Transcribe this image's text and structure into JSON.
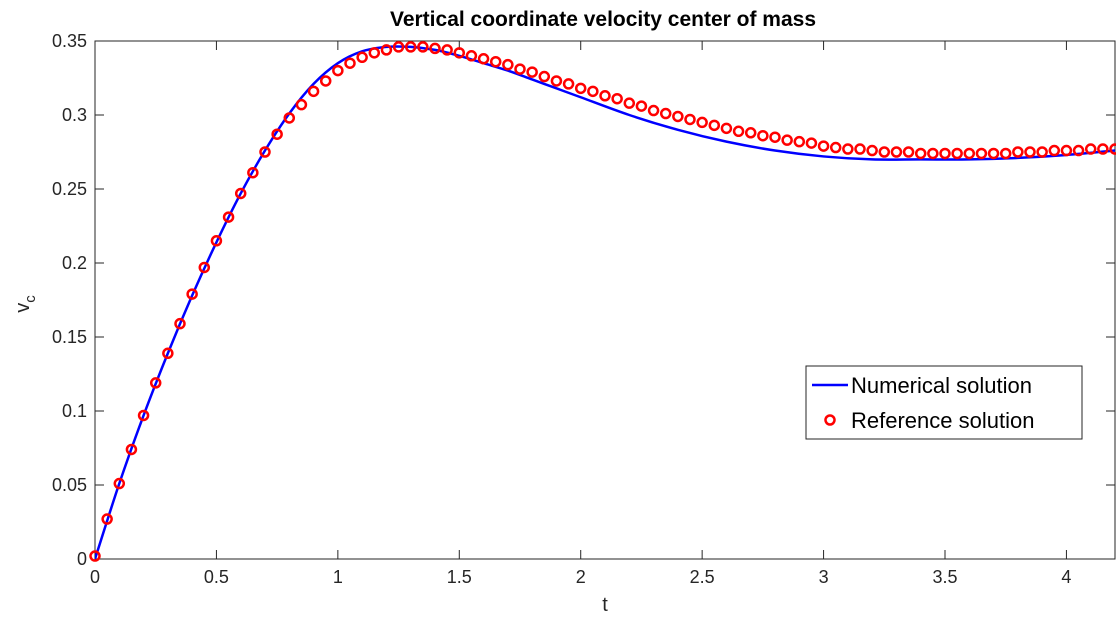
{
  "chart_data": {
    "type": "line",
    "title": "Vertical coordinate velocity center of mass",
    "xlabel": "t",
    "ylabel_main": "v",
    "ylabel_sub": "c",
    "xlim": [
      0,
      4.2
    ],
    "ylim": [
      0,
      0.35
    ],
    "xticks": [
      0,
      0.5,
      1,
      1.5,
      2,
      2.5,
      3,
      3.5,
      4
    ],
    "xtick_labels": [
      "0",
      "0.5",
      "1",
      "1.5",
      "2",
      "2.5",
      "3",
      "3.5",
      "4"
    ],
    "yticks": [
      0,
      0.05,
      0.1,
      0.15,
      0.2,
      0.25,
      0.3,
      0.35
    ],
    "ytick_labels": [
      "0",
      "0.05",
      "0.1",
      "0.15",
      "0.2",
      "0.25",
      "0.3",
      "0.35"
    ],
    "grid": false,
    "legend_position": "right-center",
    "series": [
      {
        "name": "Numerical solution",
        "style": "line",
        "color": "#0000ff",
        "x": [
          0,
          0.1,
          0.2,
          0.3,
          0.4,
          0.5,
          0.6,
          0.7,
          0.8,
          0.9,
          1.0,
          1.1,
          1.2,
          1.3,
          1.4,
          1.5,
          1.6,
          1.7,
          1.8,
          1.9,
          2.0,
          2.2,
          2.4,
          2.6,
          2.8,
          3.0,
          3.2,
          3.4,
          3.6,
          3.8,
          4.0,
          4.2
        ],
        "y": [
          0,
          0.051,
          0.097,
          0.139,
          0.178,
          0.214,
          0.247,
          0.276,
          0.301,
          0.321,
          0.335,
          0.343,
          0.346,
          0.346,
          0.344,
          0.34,
          0.335,
          0.33,
          0.324,
          0.318,
          0.312,
          0.3,
          0.29,
          0.282,
          0.276,
          0.272,
          0.27,
          0.27,
          0.27,
          0.271,
          0.273,
          0.276
        ]
      },
      {
        "name": "Reference solution",
        "style": "marker",
        "color": "#ff0000",
        "x": [
          0,
          0.05,
          0.1,
          0.15,
          0.2,
          0.25,
          0.3,
          0.35,
          0.4,
          0.45,
          0.5,
          0.55,
          0.6,
          0.65,
          0.7,
          0.75,
          0.8,
          0.85,
          0.9,
          0.95,
          1.0,
          1.05,
          1.1,
          1.15,
          1.2,
          1.25,
          1.3,
          1.35,
          1.4,
          1.45,
          1.5,
          1.55,
          1.6,
          1.65,
          1.7,
          1.75,
          1.8,
          1.85,
          1.9,
          1.95,
          2.0,
          2.05,
          2.1,
          2.15,
          2.2,
          2.25,
          2.3,
          2.35,
          2.4,
          2.45,
          2.5,
          2.55,
          2.6,
          2.65,
          2.7,
          2.75,
          2.8,
          2.85,
          2.9,
          2.95,
          3.0,
          3.05,
          3.1,
          3.15,
          3.2,
          3.25,
          3.3,
          3.35,
          3.4,
          3.45,
          3.5,
          3.55,
          3.6,
          3.65,
          3.7,
          3.75,
          3.8,
          3.85,
          3.9,
          3.95,
          4.0,
          4.05,
          4.1,
          4.15,
          4.2
        ],
        "y": [
          0.002,
          0.027,
          0.051,
          0.074,
          0.097,
          0.119,
          0.139,
          0.159,
          0.179,
          0.197,
          0.215,
          0.231,
          0.247,
          0.261,
          0.275,
          0.287,
          0.298,
          0.307,
          0.316,
          0.323,
          0.33,
          0.335,
          0.339,
          0.342,
          0.344,
          0.346,
          0.346,
          0.346,
          0.345,
          0.344,
          0.342,
          0.34,
          0.338,
          0.336,
          0.334,
          0.331,
          0.329,
          0.326,
          0.323,
          0.321,
          0.318,
          0.316,
          0.313,
          0.311,
          0.308,
          0.306,
          0.303,
          0.301,
          0.299,
          0.297,
          0.295,
          0.293,
          0.291,
          0.289,
          0.288,
          0.286,
          0.285,
          0.283,
          0.282,
          0.281,
          0.279,
          0.278,
          0.277,
          0.277,
          0.276,
          0.275,
          0.275,
          0.275,
          0.274,
          0.274,
          0.274,
          0.274,
          0.274,
          0.274,
          0.274,
          0.274,
          0.275,
          0.275,
          0.275,
          0.276,
          0.276,
          0.276,
          0.277,
          0.277,
          0.277
        ]
      }
    ]
  }
}
